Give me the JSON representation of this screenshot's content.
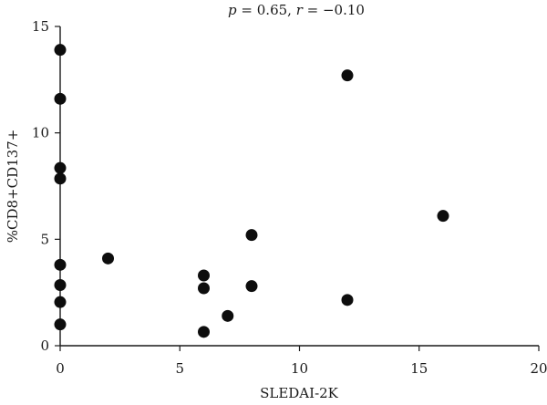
{
  "chart_data": {
    "type": "scatter",
    "annotation": {
      "p_symbol": "p",
      "p_value": " = 0.65, ",
      "r_symbol": "r",
      "r_value": " = −0.10"
    },
    "xlabel": "SLEDAI-2K",
    "ylabel": "%CD8+CD137+",
    "xlim": [
      0,
      20
    ],
    "ylim": [
      0,
      15
    ],
    "x_ticks": [
      0,
      5,
      10,
      15,
      20
    ],
    "y_ticks": [
      0,
      5,
      10,
      15
    ],
    "x_tick_labels": [
      "0",
      "5",
      "10",
      "15",
      "20"
    ],
    "y_tick_labels": [
      "0",
      "5",
      "10",
      "15"
    ],
    "grid": false,
    "legend": "none",
    "marker_color": "#0d0d0d",
    "points": [
      {
        "x": 0,
        "y": 13.9
      },
      {
        "x": 0,
        "y": 11.6
      },
      {
        "x": 0,
        "y": 8.35
      },
      {
        "x": 0,
        "y": 7.85
      },
      {
        "x": 0,
        "y": 3.8
      },
      {
        "x": 0,
        "y": 2.85
      },
      {
        "x": 0,
        "y": 2.05
      },
      {
        "x": 0,
        "y": 1.0
      },
      {
        "x": 2,
        "y": 4.1
      },
      {
        "x": 6,
        "y": 3.3
      },
      {
        "x": 6,
        "y": 2.7
      },
      {
        "x": 6,
        "y": 0.65
      },
      {
        "x": 7,
        "y": 1.4
      },
      {
        "x": 8,
        "y": 5.2
      },
      {
        "x": 8,
        "y": 2.8
      },
      {
        "x": 12,
        "y": 12.7
      },
      {
        "x": 12,
        "y": 2.15
      },
      {
        "x": 16,
        "y": 6.1
      }
    ]
  }
}
